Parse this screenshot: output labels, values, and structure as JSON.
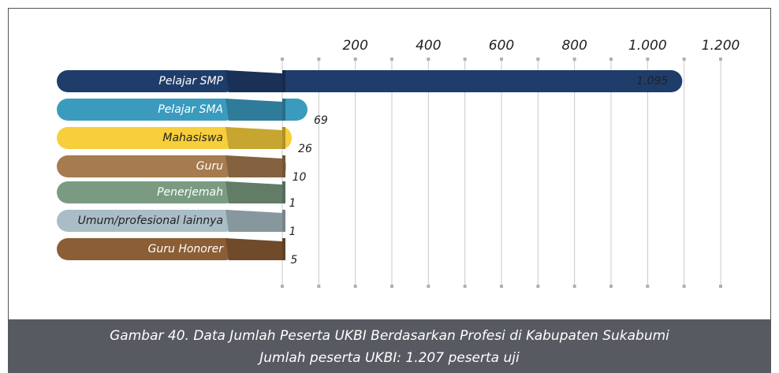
{
  "chart_data": {
    "type": "bar",
    "orientation": "horizontal",
    "title": "Gambar 40. Data Jumlah Peserta UKBI Berdasarkan Profesi di Kabupaten Sukabumi",
    "subtitle": "Jumlah peserta UKBI: 1.207 peserta uji",
    "categories": [
      "Pelajar SMP",
      "Pelajar SMA",
      "Mahasiswa",
      "Guru",
      "Penerjemah",
      "Umum/profesional lainnya",
      "Guru Honorer"
    ],
    "values": [
      1095,
      69,
      26,
      10,
      1,
      1,
      5
    ],
    "value_labels": [
      "1.095",
      "69",
      "26",
      "10",
      "1",
      "1",
      "5"
    ],
    "colors": [
      "#1f3d6b",
      "#3a9bbf",
      "#f7cf3c",
      "#a57b4f",
      "#7a9b82",
      "#a9bdc6",
      "#8b5e36"
    ],
    "xlim": [
      0,
      1200
    ],
    "xticks": [
      {
        "value": 0,
        "label": null
      },
      {
        "value": 100,
        "label": null
      },
      200,
      {
        "value": 300,
        "label": null
      },
      400,
      {
        "value": 500,
        "label": null
      },
      600,
      {
        "value": 700,
        "label": null
      },
      800,
      {
        "value": 900,
        "label": null
      },
      {
        "value": 1000,
        "label": "1.000"
      },
      {
        "value": 1100,
        "label": null
      },
      {
        "value": 1200,
        "label": "1.200"
      }
    ],
    "grid": true
  }
}
